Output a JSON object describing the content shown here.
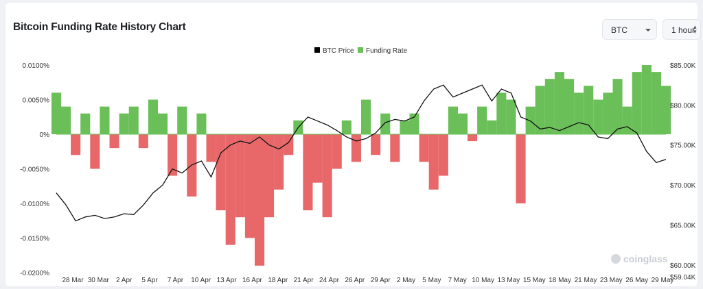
{
  "page": {
    "title": "Bitcoin Funding Rate History Chart"
  },
  "controls": {
    "symbol": "BTC",
    "interval": "1 hour"
  },
  "watermark": "coinglass",
  "chart_data": {
    "type": "area",
    "title": "Bitcoin Funding Rate History Chart",
    "legend": [
      {
        "name": "BTC Price",
        "color": "#000000"
      },
      {
        "name": "Funding Rate",
        "color": "#6bbf59"
      }
    ],
    "legend_position": "top-center",
    "negative_color": "#e8686a",
    "grid": false,
    "x_ticks": [
      "28 Mar",
      "30 Mar",
      "2 Apr",
      "5 Apr",
      "7 Apr",
      "10 Apr",
      "13 Apr",
      "16 Apr",
      "18 Apr",
      "21 Apr",
      "24 Apr",
      "26 Apr",
      "29 Apr",
      "2 May",
      "5 May",
      "7 May",
      "10 May",
      "13 May",
      "15 May",
      "18 May",
      "21 May",
      "23 May",
      "26 May",
      "29 May"
    ],
    "y_left": {
      "label": "Funding Rate",
      "ticks": [
        "0.0100%",
        "0.0050%",
        "0%",
        "-0.0050%",
        "-0.0100%",
        "-0.0150%",
        "-0.0200%"
      ],
      "ylim": [
        -0.02,
        0.01
      ]
    },
    "y_right": {
      "label": "BTC Price",
      "ticks": [
        "$85.00K",
        "$80.00K",
        "$75.00K",
        "$70.00K",
        "$65.00K",
        "$60.00K",
        "$59.04K"
      ],
      "ylim": [
        59040,
        85000
      ]
    },
    "series": [
      {
        "name": "Funding Rate",
        "unit": "%",
        "x": [
          "28 Mar",
          "29 Mar",
          "30 Mar",
          "31 Mar",
          "1 Apr",
          "2 Apr",
          "3 Apr",
          "4 Apr",
          "5 Apr",
          "6 Apr",
          "7 Apr",
          "8 Apr",
          "9 Apr",
          "10 Apr",
          "11 Apr",
          "12 Apr",
          "13 Apr",
          "14 Apr",
          "15 Apr",
          "16 Apr",
          "17 Apr",
          "18 Apr",
          "19 Apr",
          "20 Apr",
          "21 Apr",
          "22 Apr",
          "23 Apr",
          "24 Apr",
          "25 Apr",
          "26 Apr",
          "27 Apr",
          "28 Apr",
          "29 Apr",
          "30 Apr",
          "1 May",
          "2 May",
          "3 May",
          "4 May",
          "5 May",
          "6 May",
          "7 May",
          "8 May",
          "9 May",
          "10 May",
          "11 May",
          "12 May",
          "13 May",
          "14 May",
          "15 May",
          "16 May",
          "17 May",
          "18 May",
          "19 May",
          "20 May",
          "21 May",
          "22 May",
          "23 May",
          "24 May",
          "25 May",
          "26 May",
          "27 May",
          "28 May",
          "29 May",
          "30 May"
        ],
        "values": [
          0.006,
          0.004,
          -0.003,
          0.003,
          -0.005,
          0.004,
          -0.002,
          0.003,
          0.004,
          -0.002,
          0.005,
          0.003,
          -0.006,
          0.004,
          -0.009,
          0.003,
          -0.004,
          -0.011,
          -0.016,
          -0.012,
          -0.015,
          -0.019,
          -0.012,
          -0.008,
          -0.003,
          0.002,
          -0.011,
          -0.007,
          -0.012,
          -0.005,
          0.002,
          -0.004,
          0.005,
          -0.003,
          0.003,
          -0.004,
          0.002,
          0.003,
          -0.004,
          -0.008,
          -0.006,
          0.004,
          0.003,
          -0.001,
          0.004,
          0.002,
          0.006,
          0.005,
          -0.01,
          0.004,
          0.007,
          0.008,
          0.009,
          0.008,
          0.006,
          0.007,
          0.005,
          0.006,
          0.008,
          0.004,
          0.009,
          0.01,
          0.009,
          0.007
        ]
      },
      {
        "name": "BTC Price",
        "unit": "USD",
        "x": [
          "28 Mar",
          "29 Mar",
          "30 Mar",
          "31 Mar",
          "1 Apr",
          "2 Apr",
          "3 Apr",
          "4 Apr",
          "5 Apr",
          "6 Apr",
          "7 Apr",
          "8 Apr",
          "9 Apr",
          "10 Apr",
          "11 Apr",
          "12 Apr",
          "13 Apr",
          "14 Apr",
          "15 Apr",
          "16 Apr",
          "17 Apr",
          "18 Apr",
          "19 Apr",
          "20 Apr",
          "21 Apr",
          "22 Apr",
          "23 Apr",
          "24 Apr",
          "25 Apr",
          "26 Apr",
          "27 Apr",
          "28 Apr",
          "29 Apr",
          "30 Apr",
          "1 May",
          "2 May",
          "3 May",
          "4 May",
          "5 May",
          "6 May",
          "7 May",
          "8 May",
          "9 May",
          "10 May",
          "11 May",
          "12 May",
          "13 May",
          "14 May",
          "15 May",
          "16 May",
          "17 May",
          "18 May",
          "19 May",
          "20 May",
          "21 May",
          "22 May",
          "23 May",
          "24 May",
          "25 May",
          "26 May",
          "27 May",
          "28 May",
          "29 May",
          "30 May"
        ],
        "values": [
          69000,
          67500,
          65500,
          66000,
          66200,
          65800,
          66000,
          66400,
          66300,
          67500,
          69000,
          70000,
          72000,
          71500,
          72500,
          73000,
          71000,
          74000,
          75000,
          75500,
          75200,
          76000,
          75000,
          74500,
          75300,
          77200,
          78500,
          78000,
          77500,
          76800,
          76000,
          75500,
          75800,
          76500,
          77800,
          78200,
          78000,
          78500,
          80500,
          82000,
          82500,
          81000,
          81500,
          82000,
          82500,
          80500,
          82000,
          81500,
          78500,
          78000,
          77000,
          77200,
          76800,
          77300,
          77800,
          77500,
          76000,
          75800,
          77000,
          77300,
          76500,
          74200,
          72800,
          73200
        ]
      }
    ]
  }
}
